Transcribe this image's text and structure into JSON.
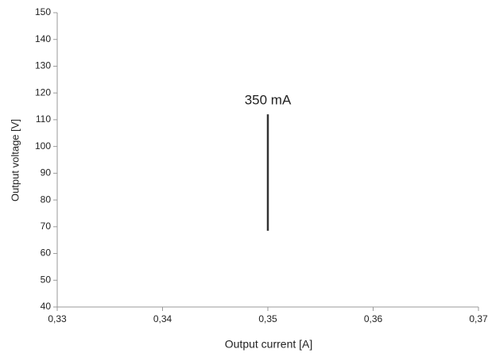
{
  "chart_data": {
    "type": "line",
    "x_label": "Output current [A]",
    "y_label": "Output voltage [V]",
    "annotation": "350 mA",
    "x": [
      0.35,
      0.35
    ],
    "values": [
      68.5,
      112
    ],
    "color": "#333333",
    "xlim": [
      0.33,
      0.37
    ],
    "xticks": [
      {
        "value": 0.33,
        "label": "0,33"
      },
      {
        "value": 0.34,
        "label": "0,34"
      },
      {
        "value": 0.35,
        "label": "0,35"
      },
      {
        "value": 0.36,
        "label": "0,36"
      },
      {
        "value": 0.37,
        "label": "0,37"
      }
    ],
    "ylim": [
      40,
      150
    ],
    "yticks": [
      40,
      50,
      60,
      70,
      80,
      90,
      100,
      110,
      120,
      130,
      140,
      150
    ],
    "grid": false
  }
}
